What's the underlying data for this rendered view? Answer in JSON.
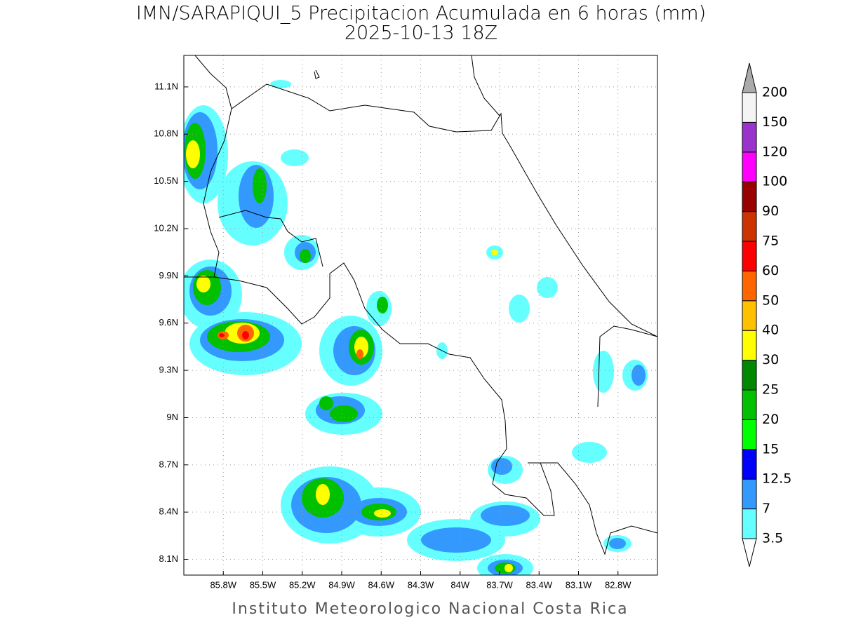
{
  "title": "IMN/SARAPIQUI_5 Precipitacion Acumulada en 6 horas (mm)",
  "subtitle": "2025-10-13 18Z",
  "credit": "Instituto Meteorologico Nacional Costa Rica",
  "map": {
    "xlim": [
      -86.1,
      -82.5
    ],
    "ylim": [
      8.0,
      11.3
    ],
    "grid": true,
    "xticks": [
      {
        "value": -85.8,
        "label": "85.8W"
      },
      {
        "value": -85.5,
        "label": "85.5W"
      },
      {
        "value": -85.2,
        "label": "85.2W"
      },
      {
        "value": -84.9,
        "label": "84.9W"
      },
      {
        "value": -84.6,
        "label": "84.6W"
      },
      {
        "value": -84.3,
        "label": "84.3W"
      },
      {
        "value": -84.0,
        "label": "84W"
      },
      {
        "value": -83.7,
        "label": "83.7W"
      },
      {
        "value": -83.4,
        "label": "83.4W"
      },
      {
        "value": -83.1,
        "label": "83.1W"
      },
      {
        "value": -82.8,
        "label": "82.8W"
      }
    ],
    "yticks": [
      {
        "value": 8.1,
        "label": "8.1N"
      },
      {
        "value": 8.4,
        "label": "8.4N"
      },
      {
        "value": 8.7,
        "label": "8.7N"
      },
      {
        "value": 9.0,
        "label": "9N"
      },
      {
        "value": 9.3,
        "label": "9.3N"
      },
      {
        "value": 9.6,
        "label": "9.6N"
      },
      {
        "value": 9.9,
        "label": "9.9N"
      },
      {
        "value": 10.2,
        "label": "10.2N"
      },
      {
        "value": 10.5,
        "label": "10.5N"
      },
      {
        "value": 10.8,
        "label": "10.8N"
      },
      {
        "value": 11.1,
        "label": "11.1N"
      }
    ]
  },
  "colorbar": {
    "levels": [
      3.5,
      7,
      12.5,
      15,
      20,
      25,
      30,
      40,
      50,
      60,
      75,
      90,
      100,
      120,
      150,
      200
    ],
    "colors": [
      "#66ffff",
      "#3399ff",
      "#0000ff",
      "#00ff00",
      "#00c000",
      "#008800",
      "#ffff00",
      "#ffc000",
      "#ff6600",
      "#ff0000",
      "#cc3300",
      "#990000",
      "#ff00ff",
      "#9933cc",
      "#f4f4f4"
    ],
    "under_color": "#ffffff",
    "over_color": "#aaaaaa"
  }
}
